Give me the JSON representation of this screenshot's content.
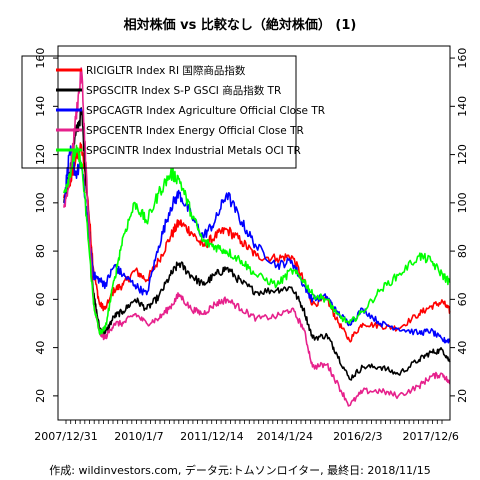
{
  "chart_data": {
    "type": "line",
    "title": "相対株価 vs 比較なし（絶対株価） (1)",
    "caption": "作成: wildinvestors.com, データ元:トムソンロイター, 最終日: 2018/11/15",
    "x_tick_labels": [
      "2007/12/31",
      "2010/1/7",
      "2011/12/14",
      "2014/1/24",
      "2016/2/3",
      "2017/12/6"
    ],
    "x_range": [
      "2007-11-01",
      "2018-11-15"
    ],
    "ylim": [
      10,
      165
    ],
    "y_ticks": [
      20,
      40,
      60,
      80,
      100,
      120,
      140,
      160
    ],
    "legend_position": "top-left",
    "grid": false,
    "series": [
      {
        "name": "RICIGLTR Index RI 国際商品指数",
        "color": "#ff0000",
        "x": [
          "2008-01-01",
          "2008-03-01",
          "2008-05-01",
          "2008-07-01",
          "2008-09-01",
          "2008-11-01",
          "2009-01-01",
          "2009-03-01",
          "2009-06-01",
          "2009-09-01",
          "2010-01-01",
          "2010-05-01",
          "2010-09-01",
          "2011-01-01",
          "2011-04-01",
          "2011-08-01",
          "2011-12-01",
          "2012-04-01",
          "2012-08-01",
          "2013-01-01",
          "2013-06-01",
          "2014-01-01",
          "2014-06-01",
          "2014-10-01",
          "2015-01-01",
          "2015-06-01",
          "2015-09-01",
          "2016-01-15",
          "2016-06-01",
          "2016-12-01",
          "2017-06-01",
          "2018-01-01",
          "2018-05-01",
          "2018-09-01",
          "2018-11-15"
        ],
        "values": [
          102,
          108,
          118,
          123,
          102,
          72,
          58,
          56,
          64,
          66,
          72,
          68,
          76,
          86,
          92,
          88,
          82,
          86,
          89,
          84,
          78,
          77,
          78,
          68,
          58,
          60,
          52,
          43,
          50,
          49,
          48,
          54,
          57,
          59,
          55
        ]
      },
      {
        "name": "SPGSCITR Index S-P GSCI 商品指数 TR",
        "color": "#000000",
        "x": [
          "2008-01-01",
          "2008-03-01",
          "2008-05-01",
          "2008-07-01",
          "2008-09-01",
          "2008-11-01",
          "2009-01-01",
          "2009-03-01",
          "2009-06-01",
          "2009-09-01",
          "2010-01-01",
          "2010-05-01",
          "2010-09-01",
          "2011-01-01",
          "2011-04-01",
          "2011-08-01",
          "2011-12-01",
          "2012-04-01",
          "2012-08-01",
          "2013-01-01",
          "2013-06-01",
          "2014-01-01",
          "2014-06-01",
          "2014-10-01",
          "2015-01-01",
          "2015-06-01",
          "2015-09-01",
          "2016-01-15",
          "2016-06-01",
          "2016-12-01",
          "2017-06-01",
          "2018-01-01",
          "2018-05-01",
          "2018-09-01",
          "2018-11-15"
        ],
        "values": [
          100,
          112,
          128,
          138,
          100,
          62,
          48,
          46,
          53,
          55,
          60,
          56,
          61,
          70,
          75,
          70,
          66,
          70,
          73,
          67,
          63,
          64,
          65,
          56,
          44,
          45,
          38,
          27,
          32,
          32,
          29,
          35,
          38,
          39,
          34
        ]
      },
      {
        "name": "SPGCAGTR Index Agriculture Official Close TR",
        "color": "#0000ff",
        "x": [
          "2008-01-01",
          "2008-03-01",
          "2008-05-01",
          "2008-07-01",
          "2008-09-01",
          "2008-11-01",
          "2009-01-01",
          "2009-03-01",
          "2009-06-01",
          "2009-09-01",
          "2010-01-01",
          "2010-05-01",
          "2010-09-01",
          "2011-01-01",
          "2011-04-01",
          "2011-08-01",
          "2011-12-01",
          "2012-04-01",
          "2012-08-01",
          "2013-01-01",
          "2013-06-01",
          "2014-01-01",
          "2014-06-01",
          "2014-10-01",
          "2015-01-01",
          "2015-06-01",
          "2015-09-01",
          "2016-01-15",
          "2016-06-01",
          "2016-12-01",
          "2017-06-01",
          "2018-01-01",
          "2018-05-01",
          "2018-09-01",
          "2018-11-15"
        ],
        "values": [
          100,
          122,
          112,
          116,
          92,
          70,
          68,
          66,
          74,
          70,
          66,
          62,
          82,
          98,
          104,
          95,
          86,
          92,
          104,
          92,
          82,
          74,
          76,
          66,
          60,
          61,
          55,
          50,
          56,
          50,
          48,
          46,
          47,
          43,
          43
        ]
      },
      {
        "name": "SPGCENTR Index Energy Official Close TR",
        "color": "#e6218c",
        "x": [
          "2008-01-01",
          "2008-03-01",
          "2008-05-01",
          "2008-07-01",
          "2008-09-01",
          "2008-11-01",
          "2009-01-01",
          "2009-03-01",
          "2009-06-01",
          "2009-09-01",
          "2010-01-01",
          "2010-05-01",
          "2010-09-01",
          "2011-01-01",
          "2011-04-01",
          "2011-08-01",
          "2011-12-01",
          "2012-04-01",
          "2012-08-01",
          "2013-01-01",
          "2013-06-01",
          "2014-01-01",
          "2014-06-01",
          "2014-10-01",
          "2015-01-01",
          "2015-06-01",
          "2015-09-01",
          "2016-01-15",
          "2016-06-01",
          "2016-12-01",
          "2017-06-01",
          "2018-01-01",
          "2018-05-01",
          "2018-09-01",
          "2018-11-15"
        ],
        "values": [
          98,
          110,
          135,
          155,
          100,
          58,
          46,
          44,
          50,
          50,
          54,
          50,
          52,
          57,
          62,
          56,
          54,
          58,
          60,
          56,
          52,
          53,
          56,
          48,
          32,
          33,
          26,
          16,
          22,
          22,
          20,
          24,
          28,
          29,
          25
        ]
      },
      {
        "name": "SPGCINTR Index Industrial Metals OCI TR",
        "color": "#00ff00",
        "x": [
          "2008-01-01",
          "2008-03-01",
          "2008-05-01",
          "2008-07-01",
          "2008-09-01",
          "2008-11-01",
          "2009-01-01",
          "2009-03-01",
          "2009-06-01",
          "2009-09-01",
          "2010-01-01",
          "2010-05-01",
          "2010-09-01",
          "2011-01-01",
          "2011-04-01",
          "2011-08-01",
          "2011-12-01",
          "2012-04-01",
          "2012-08-01",
          "2013-01-01",
          "2013-06-01",
          "2014-01-01",
          "2014-06-01",
          "2014-10-01",
          "2015-01-01",
          "2015-06-01",
          "2015-09-01",
          "2016-01-15",
          "2016-06-01",
          "2016-12-01",
          "2017-06-01",
          "2018-01-01",
          "2018-05-01",
          "2018-09-01",
          "2018-11-15"
        ],
        "values": [
          104,
          112,
          122,
          116,
          88,
          58,
          46,
          48,
          68,
          86,
          100,
          92,
          104,
          112,
          110,
          96,
          84,
          82,
          80,
          76,
          70,
          66,
          72,
          68,
          62,
          60,
          54,
          50,
          55,
          64,
          70,
          78,
          76,
          70,
          67
        ]
      }
    ]
  }
}
